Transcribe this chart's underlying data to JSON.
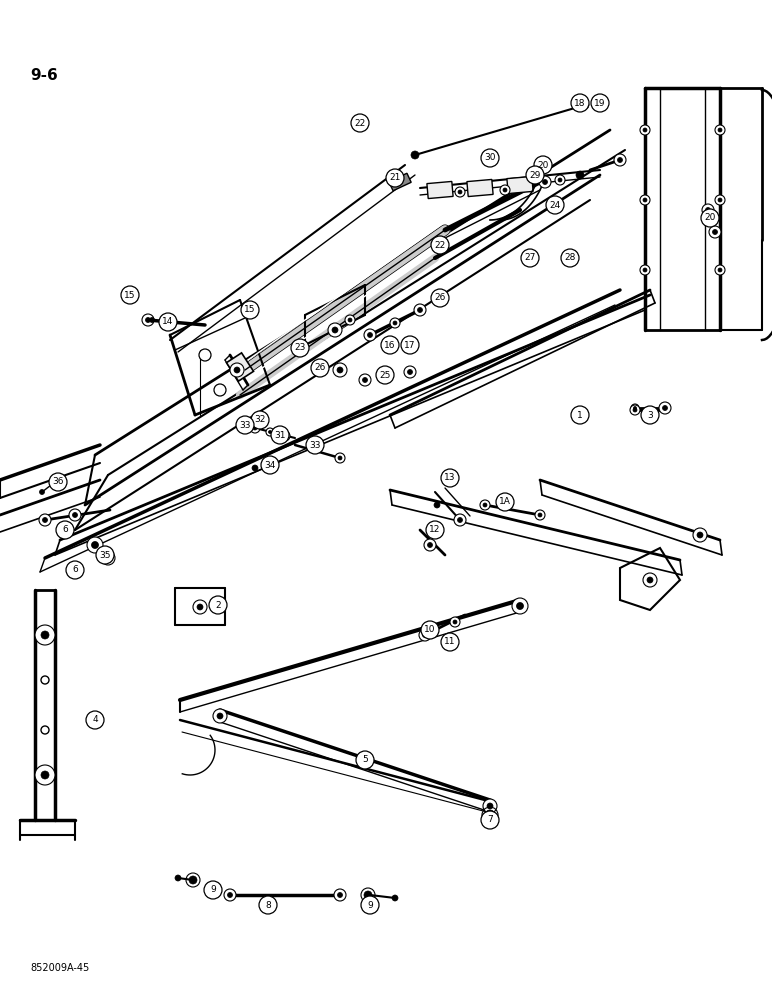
{
  "page_number": "9-6",
  "figure_code": "852009A-45",
  "background_color": "#ffffff",
  "fig_width": 7.72,
  "fig_height": 10.0,
  "dpi": 100,
  "callouts": [
    [
      1,
      580,
      415
    ],
    [
      2,
      218,
      605
    ],
    [
      3,
      650,
      415
    ],
    [
      4,
      95,
      720
    ],
    [
      5,
      365,
      760
    ],
    [
      6,
      65,
      530
    ],
    [
      6,
      75,
      570
    ],
    [
      7,
      490,
      820
    ],
    [
      8,
      268,
      905
    ],
    [
      9,
      213,
      890
    ],
    [
      9,
      370,
      905
    ],
    [
      10,
      430,
      630
    ],
    [
      11,
      450,
      642
    ],
    [
      12,
      435,
      530
    ],
    [
      13,
      450,
      478
    ],
    [
      14,
      168,
      322
    ],
    [
      15,
      130,
      295
    ],
    [
      15,
      250,
      310
    ],
    [
      16,
      390,
      345
    ],
    [
      17,
      410,
      345
    ],
    [
      18,
      580,
      103
    ],
    [
      19,
      600,
      103
    ],
    [
      20,
      543,
      165
    ],
    [
      20,
      710,
      218
    ],
    [
      21,
      395,
      178
    ],
    [
      22,
      360,
      123
    ],
    [
      22,
      440,
      245
    ],
    [
      23,
      300,
      348
    ],
    [
      24,
      555,
      205
    ],
    [
      25,
      385,
      375
    ],
    [
      26,
      320,
      368
    ],
    [
      26,
      440,
      298
    ],
    [
      27,
      530,
      258
    ],
    [
      28,
      570,
      258
    ],
    [
      29,
      535,
      175
    ],
    [
      30,
      490,
      158
    ],
    [
      31,
      280,
      435
    ],
    [
      32,
      260,
      420
    ],
    [
      33,
      245,
      425
    ],
    [
      33,
      315,
      445
    ],
    [
      34,
      270,
      465
    ],
    [
      35,
      105,
      555
    ],
    [
      36,
      58,
      482
    ],
    [
      "1A",
      505,
      502
    ]
  ]
}
